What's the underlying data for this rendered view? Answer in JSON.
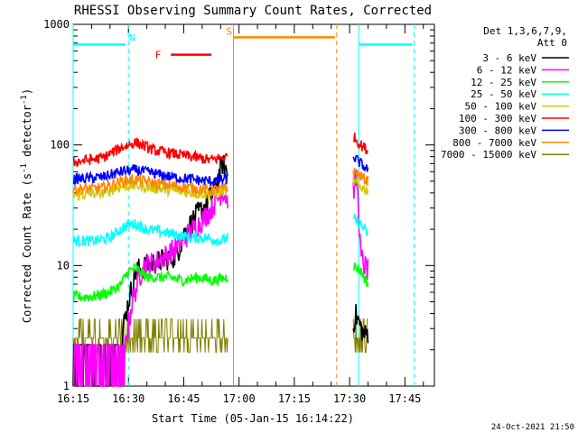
{
  "chart_data": {
    "type": "line",
    "title": "RHESSI Observing Summary Count Rates, Corrected",
    "xlabel": "Start Time (05-Jan-15 16:14:22)",
    "ylabel_main": "Corrected Count Rate (s",
    "ylabel_sup1": "-1",
    "ylabel_mid": " detector",
    "ylabel_sup2": "-1",
    "ylabel_end": ")",
    "y_scale": "log",
    "ylim": [
      1,
      1000
    ],
    "xlim_minutes": [
      0,
      98
    ],
    "x_ticks": [
      {
        "label": "16:15",
        "t": 0
      },
      {
        "label": "16:30",
        "t": 15
      },
      {
        "label": "16:45",
        "t": 30
      },
      {
        "label": "17:00",
        "t": 45
      },
      {
        "label": "17:15",
        "t": 60
      },
      {
        "label": "17:30",
        "t": 75
      },
      {
        "label": "17:45",
        "t": 90
      }
    ],
    "y_ticks": [
      {
        "label": "1",
        "v": 1
      },
      {
        "label": "10",
        "v": 10
      },
      {
        "label": "100",
        "v": 100
      },
      {
        "label": "1000",
        "v": 1000
      }
    ],
    "legend_placement": "top-right",
    "legend_header1": "Det 1,3,6,7,9,",
    "legend_header2": "Att 0",
    "timestamp": "24-Oct-2021 21:50",
    "series": [
      {
        "name": "3 - 6 keV",
        "color": "#000000",
        "x": [
          0,
          13,
          13.5,
          15,
          17,
          20,
          24,
          28,
          30,
          33,
          36,
          38,
          39.5,
          40.5,
          42,
          76,
          76.5,
          79,
          80
        ],
        "y": [
          1,
          1,
          3,
          5,
          9,
          10,
          11,
          12,
          18,
          25,
          32,
          40,
          55,
          70,
          58,
          3,
          4,
          2.6,
          2.8
        ]
      },
      {
        "name": "6 - 12 keV",
        "color": "#ff00ff",
        "x": [
          0,
          12,
          14,
          16,
          19,
          22,
          25,
          28,
          31,
          34,
          37,
          39,
          40.5,
          42,
          76,
          77,
          78,
          79,
          80
        ],
        "y": [
          1.4,
          1.4,
          2,
          5,
          10,
          10.5,
          12,
          14,
          18,
          22,
          28,
          35,
          42,
          35,
          42,
          55,
          12,
          10,
          9
        ]
      },
      {
        "name": "12 - 25 keV",
        "color": "#00ff00",
        "x": [
          0,
          5,
          10,
          13,
          15,
          17,
          20,
          23,
          26,
          30,
          34,
          38,
          42,
          76,
          78,
          80
        ],
        "y": [
          5.5,
          5.5,
          6,
          7,
          9,
          9.5,
          8,
          8,
          8,
          7.5,
          8,
          7.5,
          8,
          10,
          9,
          7
        ]
      },
      {
        "name": "25 - 50 keV",
        "color": "#00ffff",
        "x": [
          0,
          6,
          10,
          13,
          15,
          17,
          20,
          24,
          28,
          32,
          36,
          40,
          42,
          76,
          78,
          80
        ],
        "y": [
          16,
          16,
          17,
          20,
          22,
          22,
          20,
          19,
          18,
          17,
          17,
          16,
          17,
          24,
          22,
          18
        ]
      },
      {
        "name": "50 - 100 keV",
        "color": "#d4c800",
        "x": [
          0,
          8,
          13,
          17,
          22,
          27,
          32,
          37,
          42,
          76,
          78,
          80
        ],
        "y": [
          38,
          40,
          45,
          46,
          44,
          42,
          40,
          39,
          42,
          50,
          45,
          42
        ]
      },
      {
        "name": "100 - 300 keV",
        "color": "#ff0000",
        "x": [
          0,
          8,
          13,
          17,
          22,
          27,
          32,
          37,
          42,
          76,
          78,
          80
        ],
        "y": [
          72,
          78,
          95,
          105,
          90,
          85,
          80,
          75,
          80,
          118,
          100,
          90
        ]
      },
      {
        "name": "300 - 800 keV",
        "color": "#0000ff",
        "x": [
          0,
          8,
          13,
          17,
          22,
          27,
          32,
          37,
          42,
          76,
          78,
          80
        ],
        "y": [
          52,
          54,
          60,
          62,
          58,
          54,
          52,
          50,
          52,
          80,
          70,
          62
        ]
      },
      {
        "name": "800 - 7000 keV",
        "color": "#ff8800",
        "x": [
          0,
          8,
          13,
          17,
          22,
          27,
          32,
          37,
          42,
          76,
          78,
          80
        ],
        "y": [
          43,
          44,
          50,
          52,
          48,
          46,
          44,
          42,
          44,
          60,
          55,
          50
        ]
      },
      {
        "name": "7000 - 15000 keV",
        "color": "#808000",
        "x": [
          0,
          10,
          15,
          20,
          25,
          30,
          35,
          40,
          42,
          76,
          78,
          80
        ],
        "y": [
          2.5,
          2.7,
          2.4,
          2.6,
          2.5,
          2.4,
          2.6,
          2.5,
          2.5,
          2.4,
          2.6,
          2.5
        ]
      }
    ],
    "annotations": [
      {
        "text": "N",
        "color": "#00ffff",
        "t": 15
      },
      {
        "text": "F",
        "color": "#ff0000",
        "t": 23
      },
      {
        "text": "S",
        "color": "#ff8800",
        "t": 43
      }
    ]
  }
}
